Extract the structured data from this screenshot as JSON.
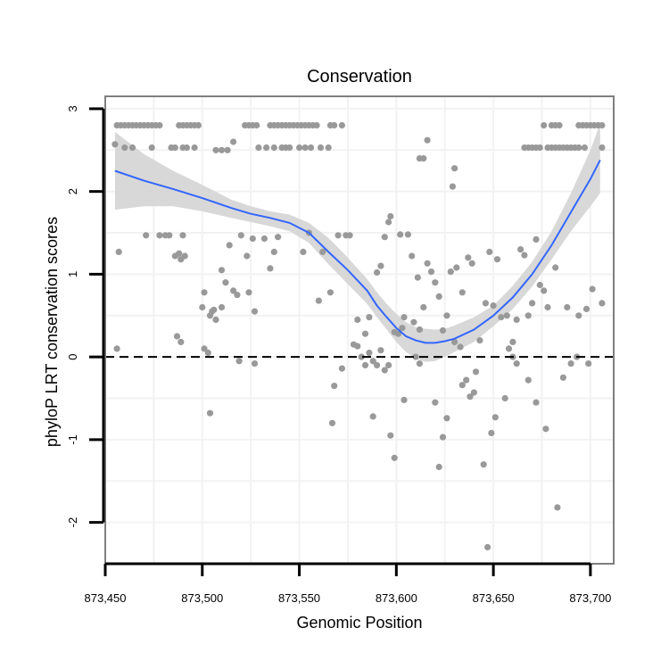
{
  "chart_data": {
    "type": "scatter",
    "title": "Conservation",
    "xlabel": "Genomic Position",
    "ylabel": "phyloP LRT conservation scores",
    "xlim": [
      873450,
      873712
    ],
    "ylim": [
      -2.5,
      3.15
    ],
    "x_ticks": [
      873450,
      873500,
      873550,
      873600,
      873650,
      873700
    ],
    "x_tick_labels": [
      "873,450",
      "873,500",
      "873,550",
      "873,600",
      "873,650",
      "873,700"
    ],
    "y_ticks": [
      -2,
      -1,
      0,
      1,
      2,
      3
    ],
    "y_tick_labels": [
      "-2",
      "-1",
      "0",
      "1",
      "2",
      "3"
    ],
    "reference_line": {
      "y": 0,
      "style": "dashed"
    },
    "grid": true,
    "colors": {
      "points": "#999999",
      "smooth_line": "#3366ff",
      "confidence_band": "#d4d4d4",
      "panel_border": "#7f7f7f",
      "grid": "#f2f2f2"
    },
    "points": [
      [
        873456,
        2.8
      ],
      [
        873458,
        2.8
      ],
      [
        873460,
        2.8
      ],
      [
        873462,
        2.8
      ],
      [
        873464,
        2.8
      ],
      [
        873466,
        2.8
      ],
      [
        873468,
        2.8
      ],
      [
        873470,
        2.8
      ],
      [
        873472,
        2.8
      ],
      [
        873474,
        2.8
      ],
      [
        873476,
        2.8
      ],
      [
        873478,
        2.8
      ],
      [
        873488,
        2.8
      ],
      [
        873490,
        2.8
      ],
      [
        873492,
        2.8
      ],
      [
        873494,
        2.8
      ],
      [
        873496,
        2.8
      ],
      [
        873498,
        2.8
      ],
      [
        873522,
        2.8
      ],
      [
        873524,
        2.8
      ],
      [
        873526,
        2.8
      ],
      [
        873528,
        2.8
      ],
      [
        873535,
        2.8
      ],
      [
        873537,
        2.8
      ],
      [
        873539,
        2.8
      ],
      [
        873541,
        2.8
      ],
      [
        873543,
        2.8
      ],
      [
        873545,
        2.8
      ],
      [
        873547,
        2.8
      ],
      [
        873549,
        2.8
      ],
      [
        873551,
        2.8
      ],
      [
        873553,
        2.8
      ],
      [
        873555,
        2.8
      ],
      [
        873557,
        2.8
      ],
      [
        873559,
        2.8
      ],
      [
        873566,
        2.8
      ],
      [
        873568,
        2.8
      ],
      [
        873572,
        2.8
      ],
      [
        873676,
        2.8
      ],
      [
        873680,
        2.8
      ],
      [
        873682,
        2.8
      ],
      [
        873684,
        2.8
      ],
      [
        873694,
        2.8
      ],
      [
        873696,
        2.8
      ],
      [
        873698,
        2.8
      ],
      [
        873700,
        2.8
      ],
      [
        873702,
        2.8
      ],
      [
        873704,
        2.8
      ],
      [
        873706,
        2.8
      ],
      [
        873455,
        2.57
      ],
      [
        873460,
        2.53
      ],
      [
        873464,
        2.53
      ],
      [
        873474,
        2.53
      ],
      [
        873484,
        2.53
      ],
      [
        873486,
        2.53
      ],
      [
        873490,
        2.53
      ],
      [
        873492,
        2.53
      ],
      [
        873496,
        2.53
      ],
      [
        873507,
        2.5
      ],
      [
        873510,
        2.5
      ],
      [
        873513,
        2.5
      ],
      [
        873516,
        2.6
      ],
      [
        873529,
        2.53
      ],
      [
        873533,
        2.53
      ],
      [
        873537,
        2.53
      ],
      [
        873541,
        2.53
      ],
      [
        873543,
        2.53
      ],
      [
        873545,
        2.53
      ],
      [
        873550,
        2.53
      ],
      [
        873553,
        2.53
      ],
      [
        873556,
        2.53
      ],
      [
        873561,
        2.53
      ],
      [
        873565,
        2.53
      ],
      [
        873616,
        2.62
      ],
      [
        873612,
        2.4
      ],
      [
        873614,
        2.4
      ],
      [
        873630,
        2.28
      ],
      [
        873629,
        2.06
      ],
      [
        873666,
        2.53
      ],
      [
        873668,
        2.53
      ],
      [
        873670,
        2.53
      ],
      [
        873672,
        2.53
      ],
      [
        873674,
        2.53
      ],
      [
        873678,
        2.53
      ],
      [
        873680,
        2.53
      ],
      [
        873682,
        2.53
      ],
      [
        873684,
        2.53
      ],
      [
        873686,
        2.53
      ],
      [
        873688,
        2.53
      ],
      [
        873690,
        2.53
      ],
      [
        873692,
        2.53
      ],
      [
        873694,
        2.53
      ],
      [
        873697,
        2.53
      ],
      [
        873706,
        2.53
      ],
      [
        873457,
        1.27
      ],
      [
        873471,
        1.47
      ],
      [
        873478,
        1.47
      ],
      [
        873481,
        1.47
      ],
      [
        873483,
        1.47
      ],
      [
        873490,
        1.47
      ],
      [
        873486,
        1.22
      ],
      [
        873488,
        1.25
      ],
      [
        873489,
        1.18
      ],
      [
        873491,
        1.22
      ],
      [
        873500,
        0.6
      ],
      [
        873501,
        0.78
      ],
      [
        873504,
        0.5
      ],
      [
        873505,
        0.55
      ],
      [
        873506,
        0.57
      ],
      [
        873510,
        1.05
      ],
      [
        873512,
        0.9
      ],
      [
        873514,
        1.35
      ],
      [
        873516,
        0.8
      ],
      [
        873518,
        0.75
      ],
      [
        873520,
        1.47
      ],
      [
        873523,
        1.22
      ],
      [
        873524,
        0.78
      ],
      [
        873526,
        1.43
      ],
      [
        873527,
        0.55
      ],
      [
        873532,
        1.43
      ],
      [
        873535,
        1.07
      ],
      [
        873537,
        1.27
      ],
      [
        873539,
        1.45
      ],
      [
        873456,
        0.1
      ],
      [
        873487,
        0.25
      ],
      [
        873489,
        0.18
      ],
      [
        873501,
        0.1
      ],
      [
        873503,
        0.05
      ],
      [
        873507,
        0.45
      ],
      [
        873510,
        0.6
      ],
      [
        873504,
        -0.68
      ],
      [
        873519,
        -0.05
      ],
      [
        873527,
        -0.08
      ],
      [
        873552,
        1.27
      ],
      [
        873555,
        1.5
      ],
      [
        873562,
        1.27
      ],
      [
        873566,
        0.78
      ],
      [
        873568,
        -0.35
      ],
      [
        873570,
        1.47
      ],
      [
        873572,
        -0.14
      ],
      [
        873574,
        1.47
      ],
      [
        873576,
        1.47
      ],
      [
        873560,
        0.68
      ],
      [
        873567,
        -0.8
      ],
      [
        873578,
        0.15
      ],
      [
        873580,
        0.13
      ],
      [
        873582,
        0.0
      ],
      [
        873584,
        -0.1
      ],
      [
        873586,
        0.05
      ],
      [
        873588,
        -0.05
      ],
      [
        873590,
        -0.1
      ],
      [
        873592,
        0.08
      ],
      [
        873594,
        -0.16
      ],
      [
        873596,
        -0.1
      ],
      [
        873580,
        0.45
      ],
      [
        873584,
        0.28
      ],
      [
        873586,
        0.48
      ],
      [
        873590,
        1.02
      ],
      [
        873592,
        1.1
      ],
      [
        873594,
        1.45
      ],
      [
        873596,
        1.63
      ],
      [
        873597,
        1.7
      ],
      [
        873599,
        0.3
      ],
      [
        873601,
        0.28
      ],
      [
        873603,
        0.35
      ],
      [
        873602,
        1.48
      ],
      [
        873604,
        0.48
      ],
      [
        873606,
        1.48
      ],
      [
        873608,
        1.22
      ],
      [
        873609,
        0.42
      ],
      [
        873611,
        0.96
      ],
      [
        873612,
        0.33
      ],
      [
        873614,
        0.6
      ],
      [
        873616,
        1.13
      ],
      [
        873618,
        1.03
      ],
      [
        873620,
        0.9
      ],
      [
        873622,
        0.73
      ],
      [
        873624,
        0.32
      ],
      [
        873626,
        0.5
      ],
      [
        873628,
        1.03
      ],
      [
        873631,
        1.08
      ],
      [
        873634,
        0.78
      ],
      [
        873637,
        1.2
      ],
      [
        873639,
        1.13
      ],
      [
        873643,
        0.2
      ],
      [
        873646,
        0.65
      ],
      [
        873648,
        1.27
      ],
      [
        873650,
        0.62
      ],
      [
        873652,
        1.18
      ],
      [
        873654,
        0.48
      ],
      [
        873657,
        0.5
      ],
      [
        873660,
        0.18
      ],
      [
        873662,
        0.45
      ],
      [
        873664,
        1.3
      ],
      [
        873666,
        1.23
      ],
      [
        873668,
        0.5
      ],
      [
        873670,
        0.65
      ],
      [
        873672,
        1.42
      ],
      [
        873674,
        0.87
      ],
      [
        873676,
        0.8
      ],
      [
        873678,
        0.6
      ],
      [
        873682,
        1.08
      ],
      [
        873688,
        0.6
      ],
      [
        873694,
        0.5
      ],
      [
        873698,
        0.58
      ],
      [
        873701,
        0.82
      ],
      [
        873706,
        0.65
      ],
      [
        873588,
        -0.72
      ],
      [
        873597,
        -0.95
      ],
      [
        873599,
        -1.22
      ],
      [
        873604,
        -0.52
      ],
      [
        873610,
        0.0
      ],
      [
        873612,
        -0.08
      ],
      [
        873620,
        -0.55
      ],
      [
        873622,
        -1.33
      ],
      [
        873624,
        -0.97
      ],
      [
        873626,
        -0.74
      ],
      [
        873630,
        0.18
      ],
      [
        873633,
        0.12
      ],
      [
        873634,
        -0.34
      ],
      [
        873636,
        -0.28
      ],
      [
        873638,
        -0.48
      ],
      [
        873640,
        -0.43
      ],
      [
        873641,
        -0.18
      ],
      [
        873645,
        -1.3
      ],
      [
        873647,
        -2.3
      ],
      [
        873649,
        -0.92
      ],
      [
        873651,
        -0.73
      ],
      [
        873656,
        -0.5
      ],
      [
        873658,
        0.1
      ],
      [
        873660,
        0.0
      ],
      [
        873662,
        -0.08
      ],
      [
        873668,
        -0.28
      ],
      [
        873672,
        -0.55
      ],
      [
        873677,
        -0.87
      ],
      [
        873683,
        -1.82
      ],
      [
        873686,
        -0.25
      ],
      [
        873690,
        -0.08
      ],
      [
        873693,
        0.0
      ],
      [
        873699,
        -0.08
      ]
    ],
    "smooth_line": [
      [
        873455,
        2.25
      ],
      [
        873470,
        2.13
      ],
      [
        873485,
        2.03
      ],
      [
        873500,
        1.92
      ],
      [
        873515,
        1.8
      ],
      [
        873525,
        1.73
      ],
      [
        873535,
        1.68
      ],
      [
        873545,
        1.62
      ],
      [
        873555,
        1.5
      ],
      [
        873565,
        1.27
      ],
      [
        873575,
        1.05
      ],
      [
        873585,
        0.8
      ],
      [
        873590,
        0.62
      ],
      [
        873595,
        0.48
      ],
      [
        873600,
        0.35
      ],
      [
        873605,
        0.25
      ],
      [
        873610,
        0.2
      ],
      [
        873615,
        0.17
      ],
      [
        873620,
        0.17
      ],
      [
        873625,
        0.19
      ],
      [
        873630,
        0.22
      ],
      [
        873640,
        0.33
      ],
      [
        873650,
        0.5
      ],
      [
        873660,
        0.72
      ],
      [
        873670,
        1.0
      ],
      [
        873680,
        1.35
      ],
      [
        873690,
        1.75
      ],
      [
        873700,
        2.15
      ],
      [
        873705,
        2.38
      ]
    ],
    "band_upper": [
      [
        873455,
        2.72
      ],
      [
        873470,
        2.45
      ],
      [
        873485,
        2.25
      ],
      [
        873500,
        2.08
      ],
      [
        873515,
        1.9
      ],
      [
        873525,
        1.82
      ],
      [
        873535,
        1.76
      ],
      [
        873545,
        1.72
      ],
      [
        873555,
        1.62
      ],
      [
        873565,
        1.44
      ],
      [
        873575,
        1.2
      ],
      [
        873585,
        0.94
      ],
      [
        873590,
        0.78
      ],
      [
        873595,
        0.64
      ],
      [
        873600,
        0.52
      ],
      [
        873605,
        0.42
      ],
      [
        873610,
        0.36
      ],
      [
        873615,
        0.34
      ],
      [
        873620,
        0.33
      ],
      [
        873625,
        0.34
      ],
      [
        873630,
        0.38
      ],
      [
        873640,
        0.48
      ],
      [
        873650,
        0.62
      ],
      [
        873660,
        0.86
      ],
      [
        873670,
        1.15
      ],
      [
        873680,
        1.52
      ],
      [
        873690,
        1.98
      ],
      [
        873700,
        2.5
      ],
      [
        873705,
        2.82
      ]
    ],
    "band_lower": [
      [
        873455,
        1.78
      ],
      [
        873470,
        1.82
      ],
      [
        873485,
        1.82
      ],
      [
        873500,
        1.76
      ],
      [
        873515,
        1.68
      ],
      [
        873525,
        1.63
      ],
      [
        873535,
        1.58
      ],
      [
        873545,
        1.52
      ],
      [
        873555,
        1.38
      ],
      [
        873565,
        1.12
      ],
      [
        873575,
        0.88
      ],
      [
        873585,
        0.64
      ],
      [
        873590,
        0.48
      ],
      [
        873595,
        0.33
      ],
      [
        873600,
        0.18
      ],
      [
        873605,
        0.06
      ],
      [
        873610,
        -0.02
      ],
      [
        873615,
        -0.06
      ],
      [
        873620,
        -0.05
      ],
      [
        873625,
        0.0
      ],
      [
        873630,
        0.06
      ],
      [
        873640,
        0.18
      ],
      [
        873650,
        0.37
      ],
      [
        873660,
        0.58
      ],
      [
        873670,
        0.85
      ],
      [
        873680,
        1.18
      ],
      [
        873690,
        1.52
      ],
      [
        873700,
        1.82
      ],
      [
        873705,
        1.98
      ]
    ]
  }
}
